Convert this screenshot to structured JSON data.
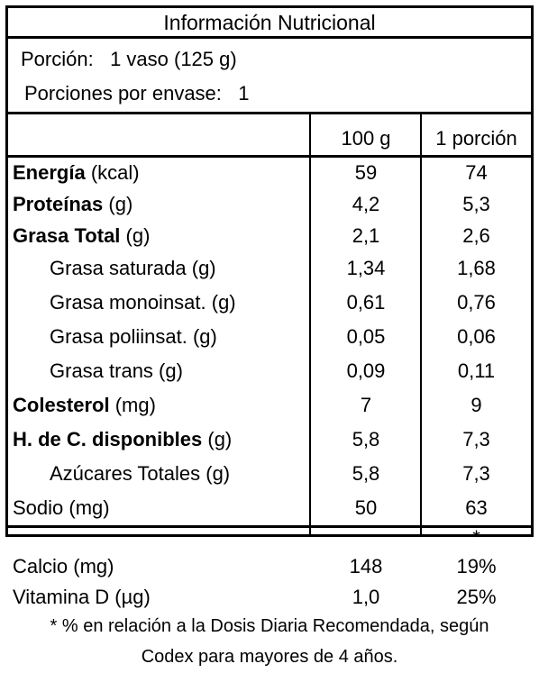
{
  "title": "Información Nutricional",
  "serving": {
    "portion_label": "Porción:",
    "portion_value": "1 vaso (125 g)",
    "per_container_label": "Porciones por envase:",
    "per_container_value": "1"
  },
  "columns": {
    "per100": "100 g",
    "perPortion": "1 porción"
  },
  "rows": [
    {
      "bold": "Energía",
      "unit": " (kcal)",
      "v100": "59",
      "vp": "74"
    },
    {
      "bold": "Proteínas",
      "unit": " (g)",
      "v100": "4,2",
      "vp": "5,3"
    },
    {
      "bold": "Grasa Total",
      "unit": " (g)",
      "v100": "2,1",
      "vp": "2,6"
    },
    {
      "text": "Grasa saturada (g)",
      "v100": "1,34",
      "vp": "1,68"
    },
    {
      "text": "Grasa monoinsat. (g)",
      "v100": "0,61",
      "vp": "0,76"
    },
    {
      "text": "Grasa poliinsat. (g)",
      "v100": "0,05",
      "vp": "0,06"
    },
    {
      "text": "Grasa trans (g)",
      "v100": "0,09",
      "vp": "0,11"
    },
    {
      "bold": "Colesterol",
      "unit": " (mg)",
      "v100": "7",
      "vp": "9"
    },
    {
      "bold": "H. de C. disponibles",
      "unit": " (g)",
      "v100": "5,8",
      "vp": "7,3"
    },
    {
      "text": "Azúcares Totales (g)",
      "v100": "5,8",
      "vp": "7,3"
    },
    {
      "text": "Sodio (mg)",
      "v100": "50",
      "vp": "63"
    }
  ],
  "asterisk": "*",
  "minerals": [
    {
      "text": "Calcio (mg)",
      "v100": "148",
      "vp": "19%"
    },
    {
      "text": "Vitamina D (µg)",
      "v100": "1,0",
      "vp": "25%"
    }
  ],
  "footnote": {
    "line1": "* % en relación a la Dosis Diaria Recomendada, según",
    "line2": "Codex para mayores de 4 años."
  }
}
